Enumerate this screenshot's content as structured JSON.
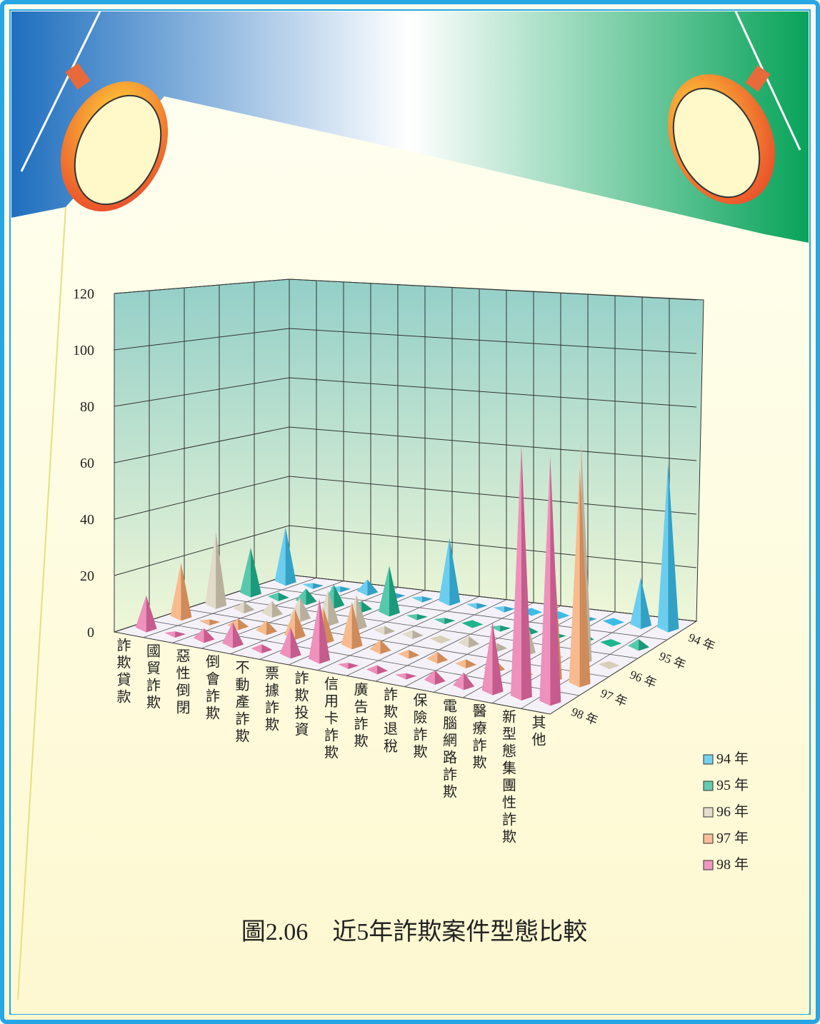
{
  "chart_data": {
    "type": "pyramid3d",
    "title": "圖2.06　近5年詐欺案件型態比較",
    "categories": [
      "詐欺貸款",
      "國貿詐欺",
      "惡性倒閉",
      "倒會詐欺",
      "不動產詐欺",
      "票據詐欺",
      "詐欺投資",
      "信用卡詐欺",
      "廣告詐欺",
      "詐欺退稅",
      "保險詐欺",
      "電腦網路詐欺",
      "醫療詐欺",
      "新型態集團性詐欺",
      "其他"
    ],
    "series": [
      {
        "name": "94 年",
        "color": "#3bbde8",
        "values": [
          22,
          1,
          1,
          5,
          1,
          1,
          25,
          1,
          1,
          0,
          0,
          1,
          0,
          18,
          62
        ]
      },
      {
        "name": "95 年",
        "color": "#1fb58f",
        "values": [
          18,
          2,
          5,
          8,
          3,
          18,
          1,
          1,
          0,
          1,
          2,
          1,
          3,
          0,
          3
        ]
      },
      {
        "name": "96 年",
        "color": "#d8cfb8",
        "values": [
          28,
          3,
          5,
          8,
          12,
          12,
          2,
          2,
          0,
          3,
          2,
          15,
          0,
          80,
          0
        ]
      },
      {
        "name": "97 年",
        "color": "#f4a46a",
        "values": [
          20,
          1,
          3,
          4,
          10,
          12,
          16,
          4,
          2,
          3,
          2,
          4,
          0,
          62,
          78
        ]
      },
      {
        "name": "98 年",
        "color": "#e86ca6",
        "values": [
          12,
          1,
          4,
          8,
          2,
          10,
          22,
          1,
          2,
          1,
          4,
          5,
          25,
          90,
          88
        ]
      }
    ],
    "ylim": [
      0,
      120
    ],
    "yticks": [
      0,
      20,
      40,
      60,
      80,
      100,
      120
    ],
    "grid": true,
    "legend": "lower right"
  }
}
